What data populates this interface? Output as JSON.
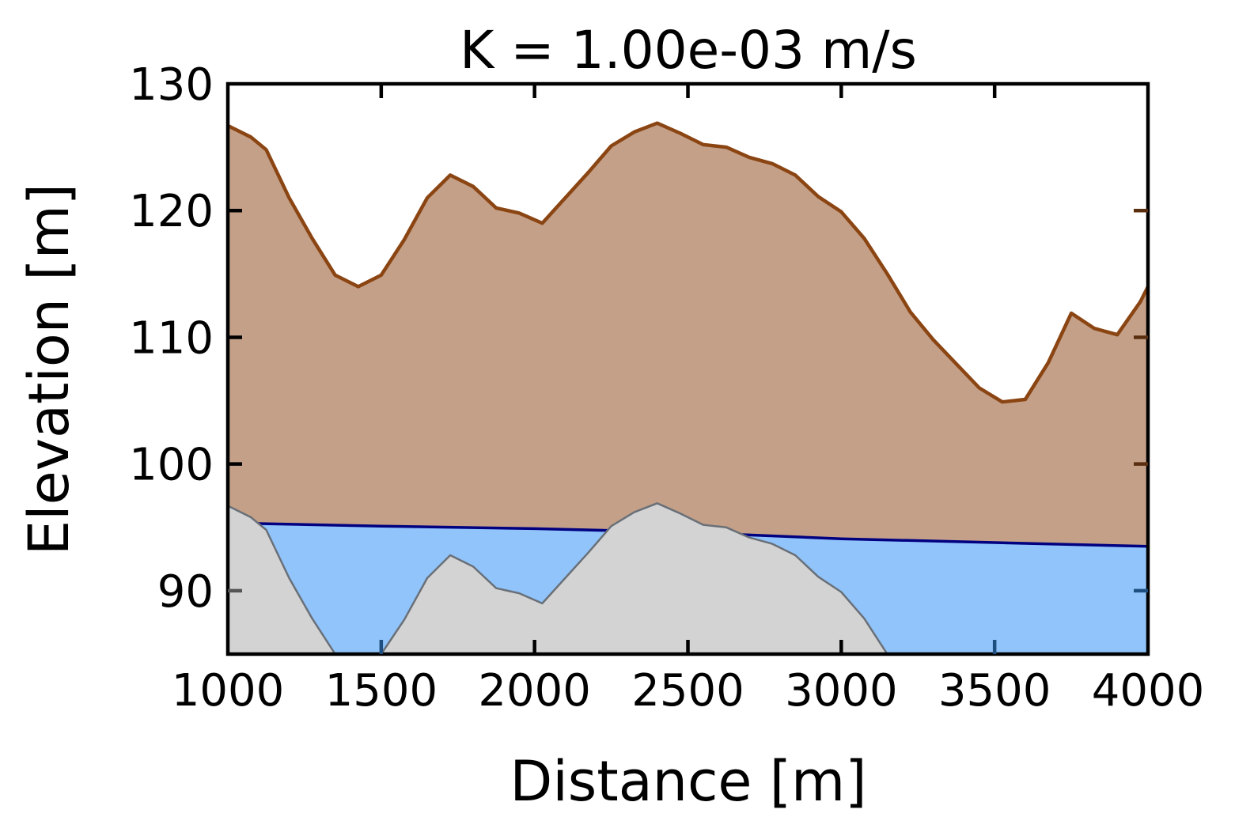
{
  "chart_data": {
    "type": "area",
    "title": "K = 1.00e-03 m/s",
    "xlabel": "Distance [m]",
    "ylabel": "Elevation [m]",
    "xlim": [
      1000,
      4000
    ],
    "ylim": [
      85,
      130
    ],
    "xticks": [
      1000,
      1500,
      2000,
      2500,
      3000,
      3500,
      4000
    ],
    "xtick_labels": [
      "1000",
      "1500",
      "2000",
      "2500",
      "3000",
      "3500",
      "4000"
    ],
    "yticks": [
      90,
      100,
      110,
      120,
      130
    ],
    "ytick_labels": [
      "90",
      "100",
      "110",
      "120",
      "130"
    ],
    "grid": false,
    "colors": {
      "surface_line": "#8b4513",
      "surface_fill": "#c4a088",
      "water_line": "#000080",
      "water_fill": "#90c4fa",
      "bedrock_line": "#6a7078",
      "bedrock_fill": "#d3d3d3"
    },
    "series": [
      {
        "key": "surface",
        "x": [
          1000,
          1075,
          1125,
          1200,
          1275,
          1350,
          1425,
          1500,
          1575,
          1650,
          1725,
          1800,
          1875,
          1950,
          2025,
          2100,
          2175,
          2250,
          2325,
          2400,
          2475,
          2550,
          2625,
          2700,
          2775,
          2850,
          2925,
          3000,
          3075,
          3150,
          3225,
          3300,
          3375,
          3450,
          3525,
          3600,
          3675,
          3750,
          3825,
          3900,
          3975,
          4000
        ],
        "values": [
          126.7,
          125.8,
          124.8,
          121.0,
          117.8,
          114.9,
          114.0,
          114.9,
          117.7,
          121.0,
          122.8,
          121.9,
          120.2,
          119.8,
          119.0,
          121.0,
          123.0,
          125.1,
          126.2,
          126.9,
          126.1,
          125.2,
          125.0,
          124.2,
          123.7,
          122.8,
          121.1,
          119.9,
          117.8,
          115.0,
          112.0,
          109.8,
          107.9,
          106.0,
          104.9,
          105.1,
          108.0,
          111.9,
          110.7,
          110.2,
          112.8,
          114.0
        ]
      },
      {
        "key": "water_table",
        "x": [
          1000,
          1100,
          1500,
          2000,
          2500,
          3000,
          3500,
          4000
        ],
        "values": [
          95.3,
          95.3,
          95.1,
          94.9,
          94.6,
          94.1,
          93.8,
          93.5
        ]
      },
      {
        "key": "bedrock",
        "x": [
          1000,
          1075,
          1125,
          1200,
          1275,
          1350,
          1425,
          1500,
          1575,
          1650,
          1725,
          1800,
          1875,
          1950,
          2025,
          2100,
          2175,
          2250,
          2325,
          2400,
          2475,
          2550,
          2625,
          2700,
          2775,
          2850,
          2925,
          3000,
          3075,
          3150
        ],
        "values": [
          96.7,
          95.8,
          94.8,
          91.0,
          87.8,
          85.0,
          85.0,
          85.0,
          87.7,
          91.0,
          92.8,
          91.9,
          90.2,
          89.8,
          89.0,
          91.0,
          93.0,
          95.1,
          96.2,
          96.9,
          96.1,
          95.2,
          95.0,
          94.2,
          93.7,
          92.8,
          91.1,
          89.9,
          87.8,
          85.0
        ]
      }
    ]
  }
}
